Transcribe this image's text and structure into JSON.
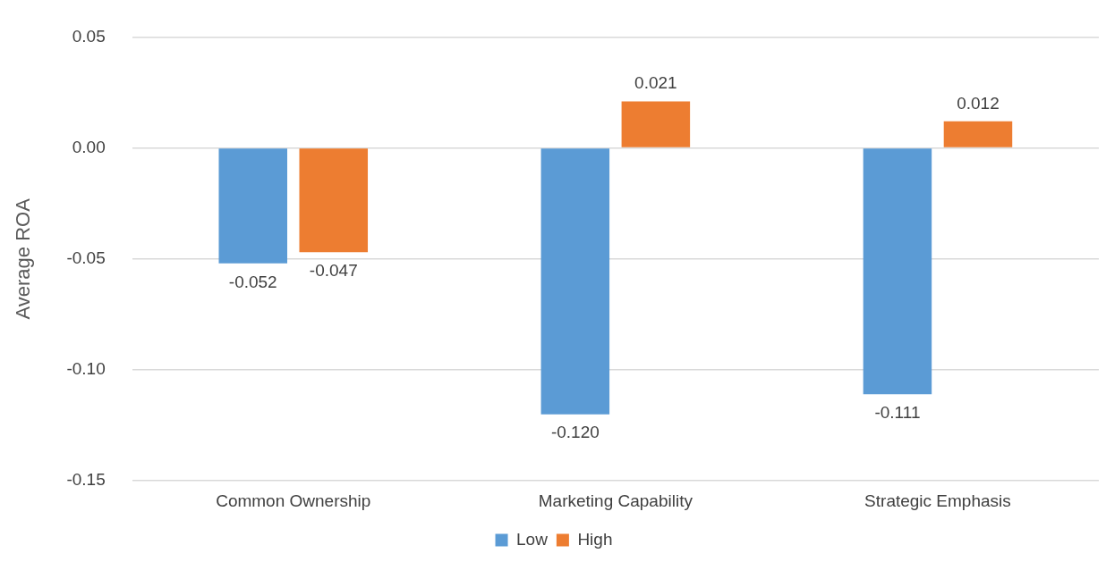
{
  "chart_data": {
    "type": "bar",
    "ylabel": "Average ROA",
    "categories": [
      "Common Ownership",
      "Marketing Capability",
      "Strategic Emphasis"
    ],
    "series": [
      {
        "name": "Low",
        "color": "#5b9bd5",
        "values": [
          -0.052,
          -0.12,
          -0.111
        ]
      },
      {
        "name": "High",
        "color": "#ed7d31",
        "values": [
          -0.047,
          0.021,
          0.012
        ]
      }
    ],
    "ylim": [
      -0.15,
      0.05
    ],
    "yticks": [
      {
        "value": -0.15,
        "label": "-0.15"
      },
      {
        "value": -0.1,
        "label": "-0.10"
      },
      {
        "value": -0.05,
        "label": "-0.05"
      },
      {
        "value": 0,
        "label": "0.00"
      },
      {
        "value": 0.05,
        "label": "0.05"
      }
    ],
    "grid": "y",
    "legend": "bottom",
    "value_labels": [
      [
        "-0.052",
        "-0.120",
        "-0.111"
      ],
      [
        "-0.047",
        "0.021",
        "0.012"
      ]
    ]
  }
}
